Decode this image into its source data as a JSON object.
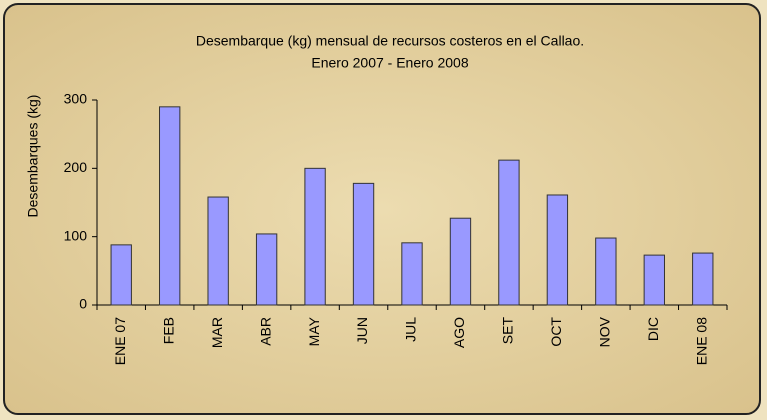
{
  "chart_data": {
    "type": "bar",
    "title": "Desembarque (kg) mensual de recursos costeros en el Callao.",
    "subtitle": "Enero 2007 - Enero 2008",
    "y_label": "Desembarques (kg)",
    "categories": [
      "ENE 07",
      "FEB",
      "MAR",
      "ABR",
      "MAY",
      "JUN",
      "JUL",
      "AGO",
      "SET",
      "OCT",
      "NOV",
      "DIC",
      "ENE 08"
    ],
    "values": [
      88,
      290,
      158,
      104,
      200,
      178,
      91,
      127,
      212,
      161,
      98,
      73,
      76
    ],
    "color": "#9999ff",
    "ylim": [
      0,
      300
    ],
    "yticks": [
      0,
      100,
      200,
      300
    ],
    "grid": false
  }
}
